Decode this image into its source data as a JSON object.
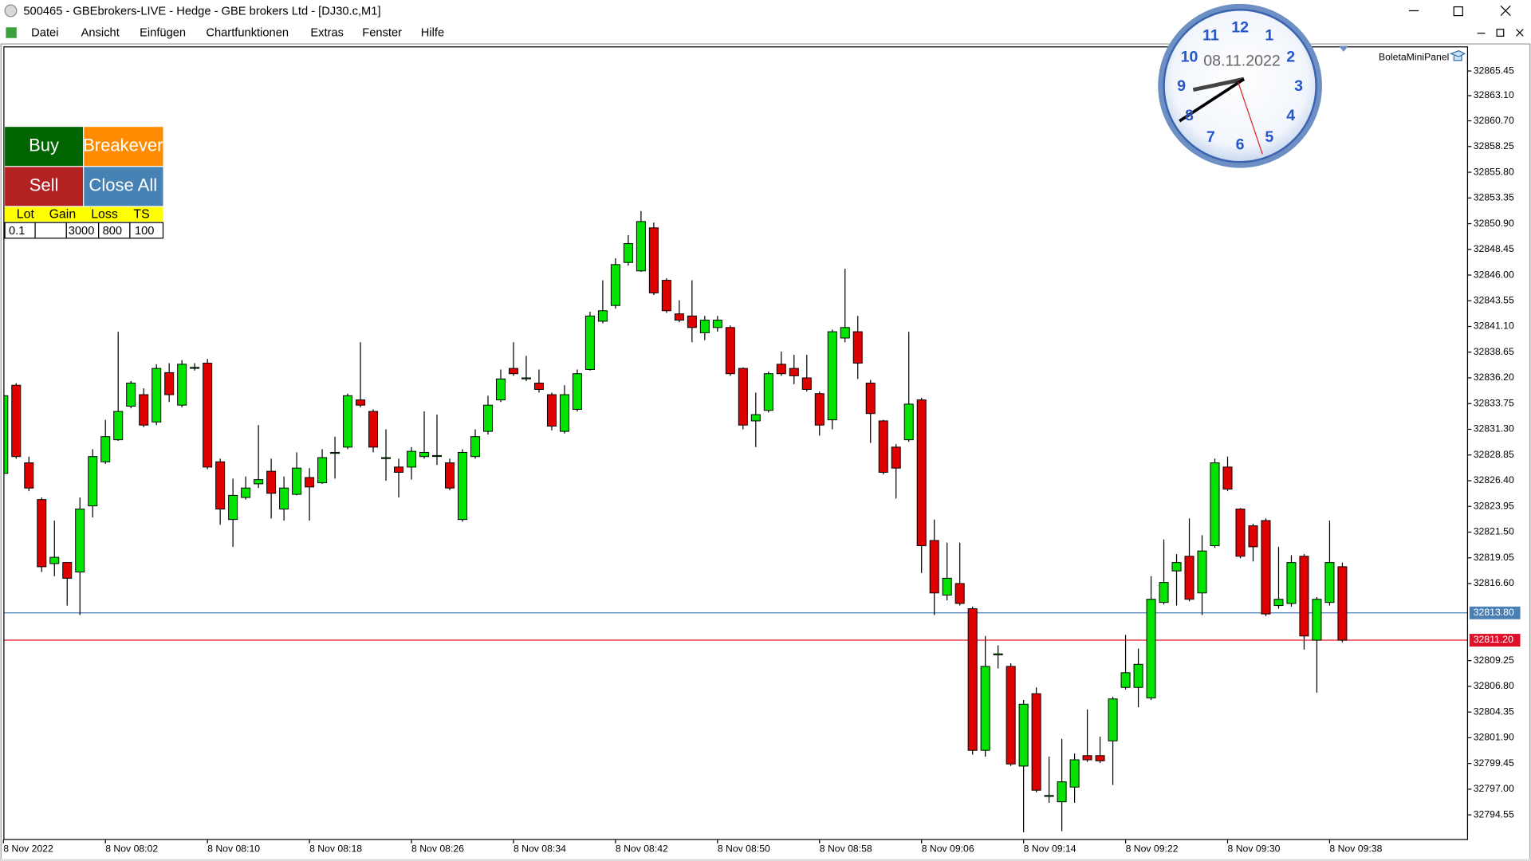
{
  "window": {
    "title": "500465 - GBEbrokers-LIVE - Hedge - GBE brokers Ltd - [DJ30.c,M1]",
    "menu": [
      "Datei",
      "Ansicht",
      "Einfügen",
      "Chartfunktionen",
      "Extras",
      "Fenster",
      "Hilfe"
    ],
    "indicator": "BoletaMiniPanel"
  },
  "panel": {
    "buttons": [
      "Buy",
      "Breakever",
      "Sell",
      "Close All"
    ],
    "headers": [
      "Lot",
      "Gain",
      "Loss",
      "TS"
    ],
    "inputs": [
      "0.1",
      "3000",
      "800",
      "100"
    ]
  },
  "clock": {
    "date": "08.11.2022",
    "numerals": [
      12,
      1,
      2,
      3,
      4,
      5,
      6,
      7,
      8,
      9,
      10,
      11
    ]
  },
  "chart_data": {
    "type": "candlestick",
    "up_color": "#00e400",
    "down_color": "#e00000",
    "categories": [
      "8 Nov 2022",
      null,
      null,
      null,
      null,
      null,
      null,
      null,
      "8 Nov 08:02",
      null,
      null,
      null,
      null,
      null,
      null,
      null,
      "8 Nov 08:10",
      null,
      null,
      null,
      null,
      null,
      null,
      null,
      "8 Nov 08:18",
      null,
      null,
      null,
      null,
      null,
      null,
      null,
      "8 Nov 08:26",
      null,
      null,
      null,
      null,
      null,
      null,
      null,
      "8 Nov 08:34",
      null,
      null,
      null,
      null,
      null,
      null,
      null,
      "8 Nov 08:42",
      null,
      null,
      null,
      null,
      null,
      null,
      null,
      "8 Nov 08:50",
      null,
      null,
      null,
      null,
      null,
      null,
      null,
      "8 Nov 08:58",
      null,
      null,
      null,
      null,
      null,
      null,
      null,
      "8 Nov 09:06",
      null,
      null,
      null,
      null,
      null,
      null,
      null,
      "8 Nov 09:14",
      null,
      null,
      null,
      null,
      null,
      null,
      null,
      "8 Nov 09:22",
      null,
      null,
      null,
      null,
      null,
      null,
      null,
      "8 Nov 09:30",
      null,
      null,
      null,
      null,
      null,
      null,
      null,
      "8 Nov 09:38",
      null
    ],
    "open": [
      32827.1,
      32835.5,
      32828.1,
      32824.6,
      32818.5,
      32818.6,
      32817.7,
      32824.0,
      32828.2,
      32830.3,
      32833.5,
      32834.6,
      32832.0,
      32836.7,
      32833.6,
      32837.2,
      32837.6,
      32828.2,
      32822.7,
      32824.8,
      32826.1,
      32827.3,
      32823.7,
      32825.1,
      32826.7,
      32826.2,
      32829.1,
      32829.6,
      32834.1,
      32833.0,
      32828.6,
      32827.7,
      32827.7,
      32828.7,
      32828.8,
      32828.1,
      32822.7,
      32828.7,
      32831.1,
      32834.1,
      32837.1,
      32836.2,
      32835.7,
      32834.6,
      32831.1,
      32833.2,
      32837.0,
      32841.6,
      32843.1,
      32847.2,
      32846.4,
      32850.5,
      32845.5,
      32842.3,
      32842.1,
      32840.5,
      32841.0,
      32841.0,
      32837.1,
      32832.1,
      32833.1,
      32837.5,
      32837.1,
      32836.2,
      32834.7,
      32832.2,
      32840.0,
      32840.6,
      32835.7,
      32832.1,
      32829.6,
      32830.3,
      32834.1,
      32820.7,
      32815.5,
      32816.6,
      32814.2,
      32800.7,
      32809.8,
      32808.7,
      32799.2,
      32806.1,
      32796.4,
      32795.8,
      32797.2,
      32800.2,
      32800.2,
      32801.6,
      32806.7,
      32806.7,
      32805.7,
      32814.8,
      32817.8,
      32819.2,
      32815.7,
      32820.2,
      32827.7,
      32823.7,
      32822.1,
      32822.6,
      32814.5,
      32814.7,
      32819.2,
      32811.2,
      32814.8,
      32818.2
    ],
    "high": [
      32835.5,
      32835.7,
      32828.7,
      32824.8,
      32822.6,
      32818.6,
      32824.8,
      32829.4,
      32832.2,
      32840.6,
      32835.9,
      32835.2,
      32837.5,
      32837.6,
      32837.9,
      32837.6,
      32838.0,
      32828.5,
      32826.6,
      32826.8,
      32831.7,
      32828.5,
      32826.8,
      32829.1,
      32827.6,
      32829.4,
      32830.6,
      32834.7,
      32839.6,
      32833.2,
      32831.3,
      32828.5,
      32829.6,
      32833.0,
      32832.7,
      32828.5,
      32829.4,
      32831.3,
      32834.5,
      32837.0,
      32839.6,
      32838.3,
      32837.0,
      32834.8,
      32835.5,
      32837.0,
      32842.5,
      32845.5,
      32847.6,
      32849.8,
      32852.1,
      32851.0,
      32845.7,
      32843.6,
      32845.5,
      32842.1,
      32842.1,
      32841.2,
      32837.2,
      32834.8,
      32836.8,
      32838.7,
      32838.4,
      32838.4,
      32834.9,
      32840.8,
      32846.6,
      32842.1,
      32836.0,
      32832.2,
      32829.9,
      32840.6,
      32834.3,
      32822.7,
      32820.5,
      32820.5,
      32814.4,
      32811.6,
      32810.7,
      32809.0,
      32805.5,
      32806.7,
      32800.1,
      32801.8,
      32800.4,
      32804.6,
      32802.0,
      32805.8,
      32811.7,
      32810.4,
      32817.3,
      32820.8,
      32819.4,
      32822.8,
      32821.2,
      32828.5,
      32828.7,
      32823.8,
      32822.3,
      32822.8,
      32820.1,
      32819.3,
      32819.4,
      32815.3,
      32822.6,
      32818.6
    ],
    "low": [
      32826.6,
      32828.5,
      32825.4,
      32817.7,
      32817.3,
      32814.5,
      32813.6,
      32822.9,
      32828.0,
      32830.2,
      32833.3,
      32831.5,
      32831.7,
      32833.9,
      32833.4,
      32836.9,
      32827.5,
      32822.2,
      32820.1,
      32824.6,
      32825.7,
      32822.8,
      32822.6,
      32825.0,
      32822.6,
      32826.1,
      32826.6,
      32829.4,
      32833.4,
      32829.1,
      32826.4,
      32824.8,
      32826.5,
      32828.5,
      32827.9,
      32825.5,
      32822.5,
      32828.5,
      32830.8,
      32833.9,
      32836.4,
      32835.9,
      32834.8,
      32831.2,
      32830.9,
      32833.0,
      32836.9,
      32841.4,
      32842.8,
      32846.9,
      32846.3,
      32844.1,
      32842.4,
      32841.5,
      32839.6,
      32839.8,
      32840.6,
      32836.4,
      32831.3,
      32829.6,
      32832.9,
      32836.4,
      32835.6,
      32834.9,
      32830.7,
      32831.3,
      32839.6,
      32836.1,
      32830.0,
      32827.0,
      32824.7,
      32830.1,
      32817.6,
      32813.6,
      32815.0,
      32814.5,
      32800.3,
      32800.1,
      32808.5,
      32799.2,
      32792.9,
      32796.7,
      32795.7,
      32793.0,
      32795.7,
      32799.6,
      32799.5,
      32797.4,
      32806.5,
      32804.8,
      32805.5,
      32814.6,
      32814.5,
      32814.9,
      32813.6,
      32820.0,
      32825.4,
      32819.0,
      32818.7,
      32813.5,
      32814.2,
      32814.4,
      32810.3,
      32806.2,
      32814.5,
      32811.0
    ],
    "close": [
      32834.5,
      32828.7,
      32825.7,
      32818.2,
      32819.1,
      32817.1,
      32823.7,
      32828.7,
      32830.6,
      32833.0,
      32835.7,
      32831.7,
      32837.1,
      32834.6,
      32837.5,
      32837.2,
      32827.7,
      32823.7,
      32825.0,
      32825.7,
      32826.5,
      32825.2,
      32825.7,
      32827.6,
      32825.8,
      32828.6,
      32829.1,
      32834.5,
      32833.6,
      32829.6,
      32828.6,
      32827.2,
      32829.2,
      32829.1,
      32828.8,
      32825.7,
      32829.1,
      32830.6,
      32833.6,
      32836.1,
      32836.6,
      32836.2,
      32835.1,
      32831.6,
      32834.6,
      32836.6,
      32842.1,
      32842.6,
      32847.0,
      32849.0,
      32851.1,
      32844.3,
      32842.6,
      32841.7,
      32841.0,
      32841.7,
      32841.7,
      32836.6,
      32831.7,
      32832.7,
      32836.6,
      32836.6,
      32836.4,
      32835.1,
      32831.7,
      32840.6,
      32841.0,
      32837.6,
      32832.8,
      32827.2,
      32827.6,
      32833.7,
      32820.2,
      32815.7,
      32817.1,
      32814.7,
      32800.7,
      32808.7,
      32809.9,
      32799.4,
      32805.1,
      32796.9,
      32796.4,
      32797.7,
      32799.8,
      32799.8,
      32799.7,
      32805.6,
      32808.1,
      32808.9,
      32815.1,
      32816.7,
      32818.6,
      32815.1,
      32819.7,
      32828.1,
      32825.6,
      32819.2,
      32820.1,
      32813.7,
      32815.1,
      32818.6,
      32811.6,
      32815.1,
      32818.6,
      32811.2
    ],
    "ylim": [
      32792.2,
      32867.75
    ],
    "yticks": [
      32794.55,
      {
        "value": 32797.0,
        "label": "32797.00"
      },
      32799.45,
      {
        "value": 32801.9,
        "label": "32801.90"
      },
      32804.35,
      {
        "value": 32806.8,
        "label": "32806.80"
      },
      32809.25,
      {
        "value": 32816.6,
        "label": "32816.60"
      },
      32819.05,
      {
        "value": 32821.5,
        "label": "32821.50"
      },
      32823.95,
      {
        "value": 32826.4,
        "label": "32826.40"
      },
      32828.85,
      {
        "value": 32831.3,
        "label": "32831.30"
      },
      32833.75,
      {
        "value": 32836.2,
        "label": "32836.20"
      },
      32838.65,
      {
        "value": 32841.1,
        "label": "32841.10"
      },
      32843.55,
      {
        "value": 32846.0,
        "label": "32846.00"
      },
      32848.45,
      {
        "value": 32850.9,
        "label": "32850.90"
      },
      32853.35,
      {
        "value": 32855.8,
        "label": "32855.80"
      },
      32858.25,
      {
        "value": 32860.7,
        "label": "32860.70"
      },
      {
        "value": 32863.1,
        "label": "32863.10"
      },
      32865.45
    ],
    "hlines": [
      {
        "value": 32813.8,
        "label": "32813.80",
        "color": "#4a7fb5"
      },
      {
        "value": 32811.2,
        "label": "32811.20",
        "color": "#e0102a"
      }
    ]
  }
}
